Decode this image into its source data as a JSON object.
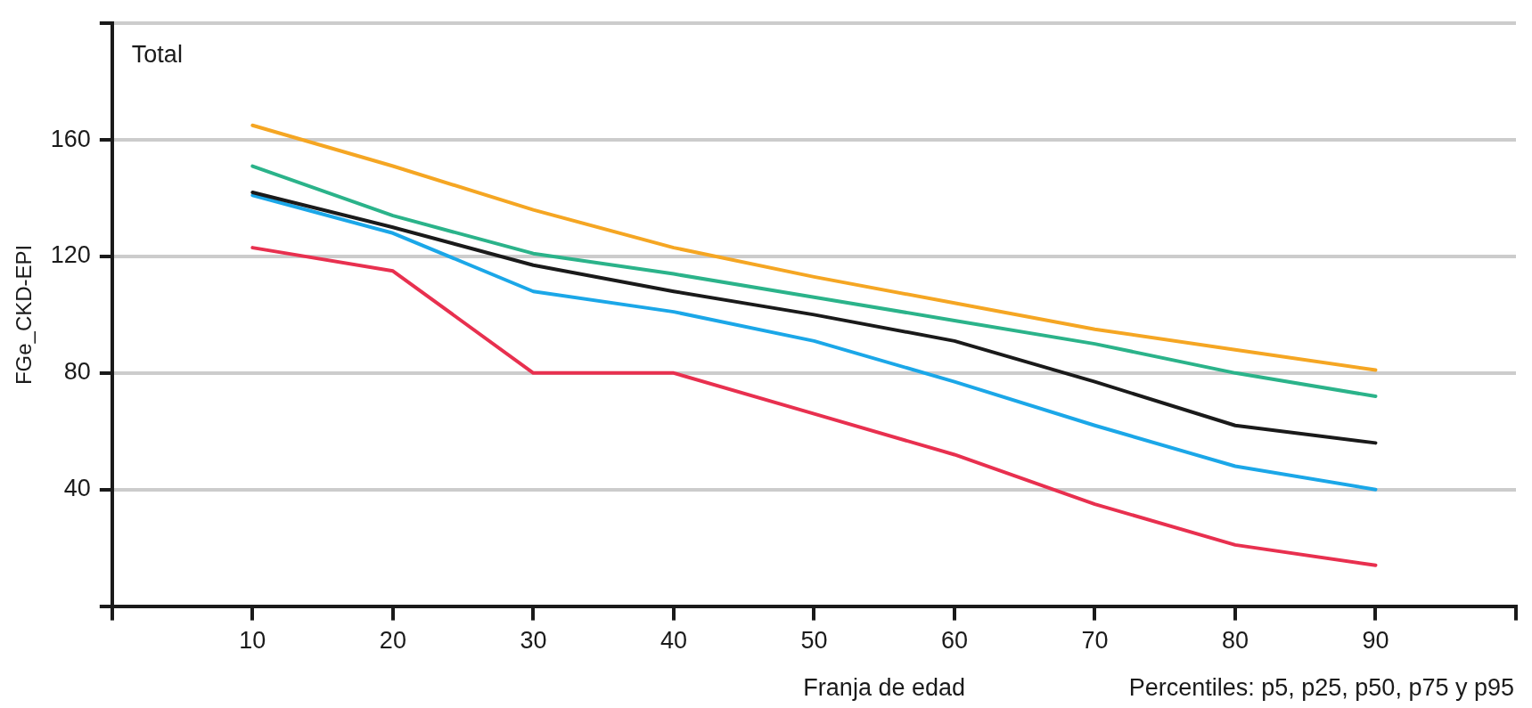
{
  "chart_data": {
    "type": "line",
    "xlabel": "Franja de edad",
    "ylabel": "FGe_CKD-EPI",
    "annotations": [
      "Total",
      "Percentiles: p5, p25, p50, p75 y p95"
    ],
    "x": [
      10,
      20,
      30,
      40,
      50,
      60,
      70,
      80,
      90
    ],
    "xlim": [
      0,
      100
    ],
    "xticks": [
      {
        "value": 0,
        "label": null
      },
      10,
      20,
      30,
      40,
      50,
      60,
      70,
      80,
      90,
      {
        "value": 100,
        "label": null
      }
    ],
    "ylim": [
      0,
      200
    ],
    "yticks": [
      {
        "value": 0,
        "label": null
      },
      40,
      80,
      120,
      160,
      {
        "value": 200,
        "label": null
      }
    ],
    "grid": "y",
    "legend": false,
    "marker": "none",
    "line_style": "solid",
    "series": [
      {
        "color": "#f5a623",
        "values": [
          165,
          151,
          136,
          123,
          113,
          104,
          95,
          88,
          81
        ]
      },
      {
        "color": "#2bb38a",
        "values": [
          151,
          134,
          121,
          114,
          106,
          98,
          90,
          80,
          72
        ]
      },
      {
        "color": "#1a1a1a",
        "values": [
          142,
          130,
          117,
          108,
          100,
          91,
          77,
          62,
          56
        ]
      },
      {
        "color": "#1ba7e8",
        "values": [
          141,
          128,
          108,
          101,
          91,
          77,
          62,
          48,
          40
        ]
      },
      {
        "color": "#e8304f",
        "values": [
          123,
          115,
          80,
          80,
          66,
          52,
          35,
          21,
          14
        ]
      }
    ]
  }
}
